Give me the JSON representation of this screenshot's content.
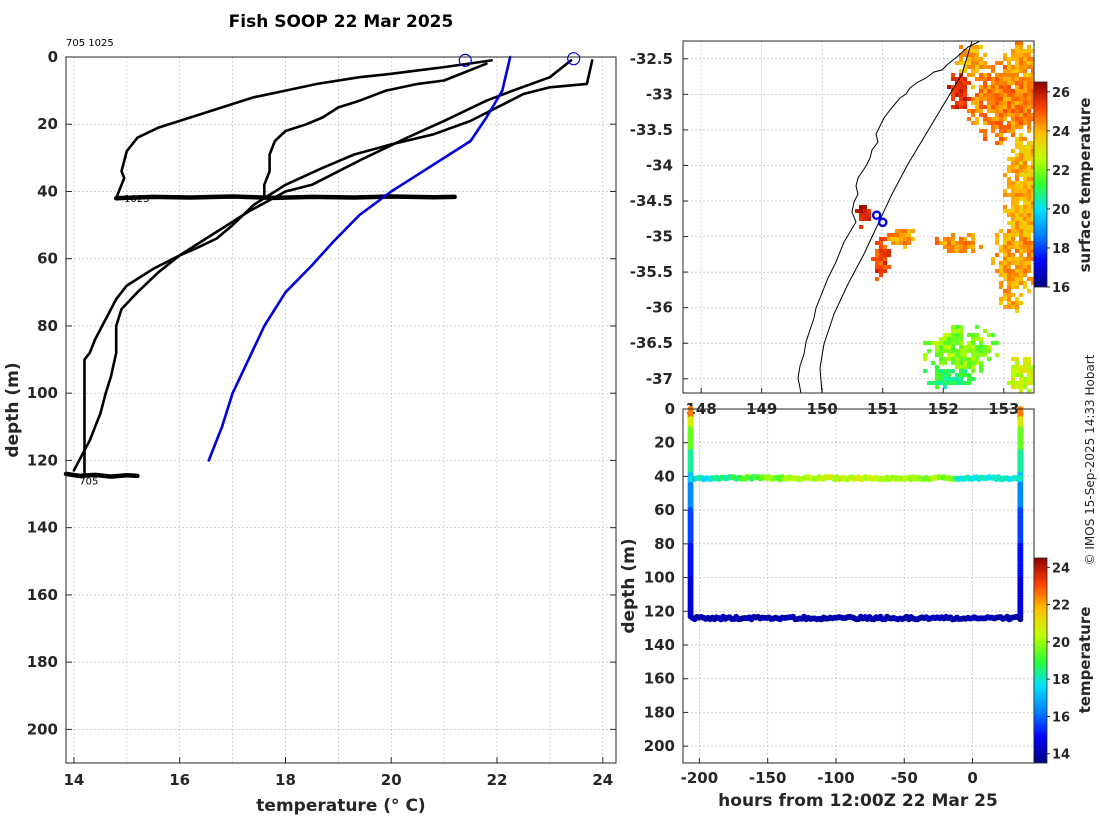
{
  "figure": {
    "title": "Fish SOOP 22 Mar 2025",
    "corner_label": "705 1025",
    "copyright": "© IMOS 15-Sep-2025 14:33 Hobart"
  },
  "chart_data": [
    {
      "id": "profiles",
      "type": "line",
      "xlabel": "temperature (° C)",
      "ylabel": "depth (m)",
      "xlim": [
        13.85,
        24.25
      ],
      "ylim": [
        210,
        0
      ],
      "xticks": [
        14,
        16,
        18,
        20,
        22,
        24
      ],
      "yticks": [
        0,
        20,
        40,
        60,
        80,
        100,
        120,
        140,
        160,
        180,
        200
      ],
      "grid": true,
      "annotations": [
        {
          "text": "1025",
          "x": 14.95,
          "y": 42
        },
        {
          "text": "705",
          "x": 14.1,
          "y": 126
        }
      ],
      "series": [
        {
          "name": "1025 surface profile",
          "color": "#000000",
          "x": [
            21.9,
            21.0,
            20.5,
            20.0,
            19.4,
            18.6,
            18.0,
            17.4,
            16.8,
            16.2,
            15.8,
            15.6,
            15.2,
            15.1,
            15.0,
            14.9,
            14.95,
            14.85,
            14.8
          ],
          "y": [
            1,
            3,
            4,
            5,
            6,
            8,
            10,
            12,
            15,
            18,
            20,
            21,
            24,
            26,
            28,
            34,
            36,
            40,
            42
          ]
        },
        {
          "name": "1025 second profile",
          "color": "#000000",
          "x": [
            21.8,
            21.0,
            20.5,
            19.9,
            19.4,
            19.0,
            18.7,
            18.4,
            18.0,
            17.8,
            17.7,
            17.7,
            17.6,
            17.6
          ],
          "y": [
            2,
            7,
            8,
            10,
            13,
            15,
            18,
            20,
            22,
            25,
            29,
            34,
            38,
            42
          ]
        },
        {
          "name": "1025 bottom trace",
          "color": "#000000",
          "x": [
            14.8,
            15.5,
            16.2,
            17.0,
            17.8,
            18.5,
            19.3,
            20.0,
            20.8,
            21.2
          ],
          "y": [
            42,
            41.6,
            41.8,
            41.5,
            41.9,
            41.6,
            41.8,
            41.5,
            41.7,
            41.6
          ]
        },
        {
          "name": "705 profile A",
          "color": "#000000",
          "x": [
            23.8,
            23.7,
            23.0,
            22.5,
            21.5,
            20.8,
            20.0,
            19.3,
            18.7,
            18.0,
            17.4,
            17.0,
            16.7,
            16.3,
            16.0,
            15.5,
            15.0,
            14.8,
            14.6,
            14.4,
            14.3,
            14.2,
            14.2,
            14.2
          ],
          "y": [
            1,
            8,
            9,
            11,
            19,
            23,
            26,
            29,
            33,
            38,
            44,
            50,
            54,
            57,
            59,
            63,
            68,
            72,
            78,
            84,
            88,
            90,
            105,
            124
          ]
        },
        {
          "name": "705 profile B",
          "color": "#000000",
          "x": [
            23.4,
            23.0,
            22.3,
            21.8,
            21.0,
            20.3,
            19.5,
            19.0,
            18.5,
            18.0,
            17.3,
            16.9,
            16.5,
            16.0,
            15.6,
            15.2,
            14.9,
            14.8,
            14.8,
            14.7,
            14.6,
            14.5,
            14.4,
            14.3,
            14.2,
            14.1,
            14.0
          ],
          "y": [
            1,
            6,
            10,
            13,
            19,
            24,
            30,
            34,
            38,
            40,
            46,
            50,
            54,
            59,
            64,
            70,
            75,
            80,
            88,
            95,
            100,
            106,
            110,
            114,
            117,
            120,
            123
          ]
        },
        {
          "name": "705 bottom trace",
          "color": "#000000",
          "x": [
            13.85,
            14.1,
            14.4,
            14.7,
            15.0,
            15.2
          ],
          "y": [
            124,
            124.6,
            124.3,
            124.8,
            124.4,
            124.6
          ]
        },
        {
          "name": "climatology",
          "color": "#0000dd",
          "x": [
            22.25,
            22.1,
            21.8,
            21.5,
            21.0,
            20.5,
            20.0,
            19.4,
            18.9,
            18.5,
            18.0,
            17.6,
            17.3,
            17.0,
            16.8,
            16.55
          ],
          "y": [
            0,
            10,
            18,
            25,
            30,
            35,
            40,
            47,
            55,
            62,
            70,
            80,
            90,
            100,
            110,
            120
          ]
        }
      ],
      "markers": [
        {
          "x": 21.4,
          "y": 1
        },
        {
          "x": 23.45,
          "y": 0.5
        }
      ]
    },
    {
      "id": "sst_map",
      "type": "heatmap",
      "colorbar_label": "surface temperature",
      "colorbar_range": [
        16,
        26.5
      ],
      "colorbar_ticks": [
        16,
        18,
        20,
        22,
        24,
        26
      ],
      "ylim": [
        -37.2,
        -32.25
      ],
      "yticks": [
        -32.5,
        -33,
        -33.5,
        -34,
        -34.5,
        -35,
        -35.5,
        -36,
        -36.5,
        -37
      ],
      "xlim": [
        147.7,
        153.5
      ],
      "xticks": [
        148,
        149,
        150,
        151,
        152,
        153
      ],
      "xtick_labels": [
        "148",
        "149",
        "150",
        "151",
        "152",
        "153"
      ],
      "stations": [
        {
          "lon": 150.9,
          "lat": -34.7
        },
        {
          "lon": 151.0,
          "lat": -34.8
        }
      ]
    },
    {
      "id": "time_depth",
      "type": "scatter",
      "xlabel": "hours from 12:00Z 22 Mar 25",
      "ylabel": "depth (m)",
      "xlim": [
        -212,
        45
      ],
      "ylim": [
        210,
        0
      ],
      "xticks": [
        -200,
        -150,
        -100,
        -50,
        0
      ],
      "yticks": [
        0,
        20,
        40,
        60,
        80,
        100,
        120,
        140,
        160,
        180,
        200
      ],
      "colorbar_label": "temperature",
      "colorbar_range": [
        13.5,
        24.5
      ],
      "colorbar_ticks": [
        14,
        16,
        18,
        20,
        22,
        24
      ],
      "traces": [
        {
          "name": "left descent",
          "hours": -205,
          "depth_from": 0,
          "depth_to": 124
        },
        {
          "name": "right descent",
          "hours": 35,
          "depth_from": 0,
          "depth_to": 124
        },
        {
          "name": "40 m layer",
          "depth": 41,
          "temps_start": 17.5,
          "temps_mid": 20.5,
          "temps_end": 18.0
        },
        {
          "name": "124 m layer",
          "depth": 124,
          "temp": 14.0
        }
      ]
    }
  ]
}
